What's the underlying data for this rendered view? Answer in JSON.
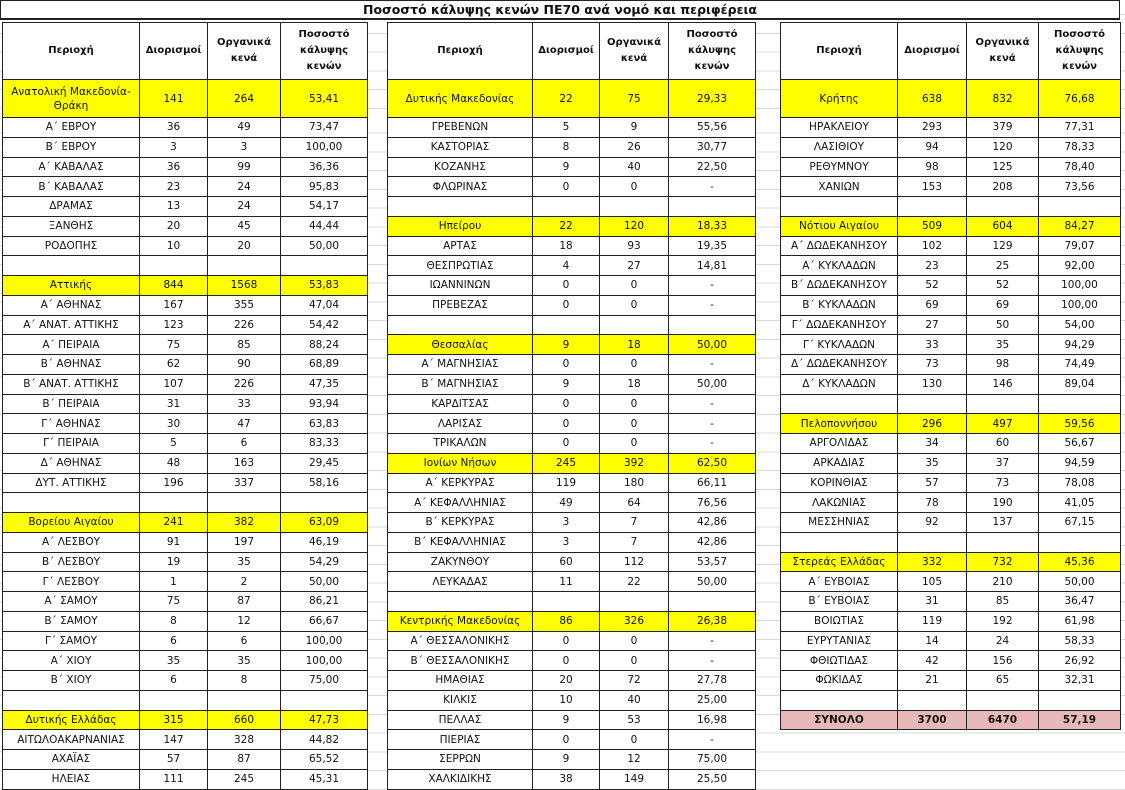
{
  "title": "Ποσοστό κάλυψης κενών ΠΕ70 ανά νομό και περιφέρεια",
  "headers": [
    "Περιοχή",
    "Διορισμοί",
    "Οργανικά κενά",
    "Ποσοστό κάλυψης κενών"
  ],
  "colors": {
    "region_highlight": "#ffff00",
    "total_highlight": "#e6b8b7"
  },
  "columns": [
    [
      {
        "type": "region",
        "cells": [
          "Ανατολική Μακεδονία-Θράκη",
          "141",
          "264",
          "53,41"
        ]
      },
      {
        "type": "item",
        "cells": [
          "Α΄ ΕΒΡΟΥ",
          "36",
          "49",
          "73,47"
        ]
      },
      {
        "type": "item",
        "cells": [
          "Β΄ ΕΒΡΟΥ",
          "3",
          "3",
          "100,00"
        ]
      },
      {
        "type": "item",
        "cells": [
          "Α΄ ΚΑΒΑΛΑΣ",
          "36",
          "99",
          "36,36"
        ]
      },
      {
        "type": "item",
        "cells": [
          "Β΄ ΚΑΒΑΛΑΣ",
          "23",
          "24",
          "95,83"
        ]
      },
      {
        "type": "item",
        "cells": [
          "ΔΡΑΜΑΣ",
          "13",
          "24",
          "54,17"
        ]
      },
      {
        "type": "item",
        "cells": [
          "ΞΑΝΘΗΣ",
          "20",
          "45",
          "44,44"
        ]
      },
      {
        "type": "item",
        "cells": [
          "ΡΟΔΟΠΗΣ",
          "10",
          "20",
          "50,00"
        ]
      },
      {
        "type": "blank"
      },
      {
        "type": "region",
        "cells": [
          "Αττικής",
          "844",
          "1568",
          "53,83"
        ]
      },
      {
        "type": "item",
        "cells": [
          "Α΄ ΑΘΗΝΑΣ",
          "167",
          "355",
          "47,04"
        ]
      },
      {
        "type": "item",
        "cells": [
          "Α΄ ΑΝΑΤ. ΑΤΤΙΚΗΣ",
          "123",
          "226",
          "54,42"
        ]
      },
      {
        "type": "item",
        "cells": [
          "Α΄ ΠΕΙΡΑΙΑ",
          "75",
          "85",
          "88,24"
        ]
      },
      {
        "type": "item",
        "cells": [
          "Β΄ ΑΘΗΝΑΣ",
          "62",
          "90",
          "68,89"
        ]
      },
      {
        "type": "item",
        "cells": [
          "Β΄ ΑΝΑΤ. ΑΤΤΙΚΗΣ",
          "107",
          "226",
          "47,35"
        ]
      },
      {
        "type": "item",
        "cells": [
          "Β΄ ΠΕΙΡΑΙΑ",
          "31",
          "33",
          "93,94"
        ]
      },
      {
        "type": "item",
        "cells": [
          "Γ΄ ΑΘΗΝΑΣ",
          "30",
          "47",
          "63,83"
        ]
      },
      {
        "type": "item",
        "cells": [
          "Γ΄ ΠΕΙΡΑΙΑ",
          "5",
          "6",
          "83,33"
        ]
      },
      {
        "type": "item",
        "cells": [
          "Δ΄ ΑΘΗΝΑΣ",
          "48",
          "163",
          "29,45"
        ]
      },
      {
        "type": "item",
        "cells": [
          "ΔΥΤ. ΑΤΤΙΚΗΣ",
          "196",
          "337",
          "58,16"
        ]
      },
      {
        "type": "blank"
      },
      {
        "type": "region",
        "cells": [
          "Βορείου Αιγαίου",
          "241",
          "382",
          "63,09"
        ]
      },
      {
        "type": "item",
        "cells": [
          "Α΄ ΛΕΣΒΟΥ",
          "91",
          "197",
          "46,19"
        ]
      },
      {
        "type": "item",
        "cells": [
          "Β΄ ΛΕΣΒΟΥ",
          "19",
          "35",
          "54,29"
        ]
      },
      {
        "type": "item",
        "cells": [
          "Γ΄ ΛΕΣΒΟΥ",
          "1",
          "2",
          "50,00"
        ]
      },
      {
        "type": "item",
        "cells": [
          "Α΄ ΣΑΜΟΥ",
          "75",
          "87",
          "86,21"
        ]
      },
      {
        "type": "item",
        "cells": [
          "Β΄ ΣΑΜΟΥ",
          "8",
          "12",
          "66,67"
        ]
      },
      {
        "type": "item",
        "cells": [
          "Γ΄ ΣΑΜΟΥ",
          "6",
          "6",
          "100,00"
        ]
      },
      {
        "type": "item",
        "cells": [
          "Α΄ ΧΙΟΥ",
          "35",
          "35",
          "100,00"
        ]
      },
      {
        "type": "item",
        "cells": [
          "Β΄ ΧΙΟΥ",
          "6",
          "8",
          "75,00"
        ]
      },
      {
        "type": "blank"
      },
      {
        "type": "region",
        "cells": [
          "Δυτικής Ελλάδας",
          "315",
          "660",
          "47,73"
        ]
      },
      {
        "type": "item",
        "cells": [
          "ΑΙΤΩΛΟΑΚΑΡΝΑΝΙΑΣ",
          "147",
          "328",
          "44,82"
        ]
      },
      {
        "type": "item",
        "cells": [
          "ΑΧΑΪΑΣ",
          "57",
          "87",
          "65,52"
        ]
      },
      {
        "type": "item",
        "cells": [
          "ΗΛΕΙΑΣ",
          "111",
          "245",
          "45,31"
        ]
      }
    ],
    [
      {
        "type": "region",
        "cells": [
          "Δυτικής Μακεδονίας",
          "22",
          "75",
          "29,33"
        ]
      },
      {
        "type": "item",
        "cells": [
          "ΓΡΕΒΕΝΩΝ",
          "5",
          "9",
          "55,56"
        ]
      },
      {
        "type": "item",
        "cells": [
          "ΚΑΣΤΟΡΙΑΣ",
          "8",
          "26",
          "30,77"
        ]
      },
      {
        "type": "item",
        "cells": [
          "ΚΟΖΑΝΗΣ",
          "9",
          "40",
          "22,50"
        ]
      },
      {
        "type": "item",
        "cells": [
          "ΦΛΩΡΙΝΑΣ",
          "0",
          "0",
          "-"
        ]
      },
      {
        "type": "blank"
      },
      {
        "type": "region",
        "cells": [
          "Ηπείρου",
          "22",
          "120",
          "18,33"
        ]
      },
      {
        "type": "item",
        "cells": [
          "ΑΡΤΑΣ",
          "18",
          "93",
          "19,35"
        ]
      },
      {
        "type": "item",
        "cells": [
          "ΘΕΣΠΡΩΤΙΑΣ",
          "4",
          "27",
          "14,81"
        ]
      },
      {
        "type": "item",
        "cells": [
          "ΙΩΑΝΝΙΝΩΝ",
          "0",
          "0",
          "-"
        ]
      },
      {
        "type": "item",
        "cells": [
          "ΠΡΕΒΕΖΑΣ",
          "0",
          "0",
          "-"
        ]
      },
      {
        "type": "blank"
      },
      {
        "type": "region",
        "cells": [
          "Θεσσαλίας",
          "9",
          "18",
          "50,00"
        ]
      },
      {
        "type": "item",
        "cells": [
          "Α΄ ΜΑΓΝΗΣΙΑΣ",
          "0",
          "0",
          "-"
        ]
      },
      {
        "type": "item",
        "cells": [
          "Β΄ ΜΑΓΝΗΣΙΑΣ",
          "9",
          "18",
          "50,00"
        ]
      },
      {
        "type": "item",
        "cells": [
          "ΚΑΡΔΙΤΣΑΣ",
          "0",
          "0",
          "-"
        ]
      },
      {
        "type": "item",
        "cells": [
          "ΛΑΡΙΣΑΣ",
          "0",
          "0",
          "-"
        ]
      },
      {
        "type": "item",
        "cells": [
          "ΤΡΙΚΑΛΩΝ",
          "0",
          "0",
          "-"
        ]
      },
      {
        "type": "region",
        "cells": [
          "Ιονίων Νήσων",
          "245",
          "392",
          "62,50"
        ]
      },
      {
        "type": "item",
        "cells": [
          "Α΄ ΚΕΡΚΥΡΑΣ",
          "119",
          "180",
          "66,11"
        ]
      },
      {
        "type": "item",
        "cells": [
          "Α΄ ΚΕΦΑΛΛΗΝΙΑΣ",
          "49",
          "64",
          "76,56"
        ]
      },
      {
        "type": "item",
        "cells": [
          "Β΄ ΚΕΡΚΥΡΑΣ",
          "3",
          "7",
          "42,86"
        ]
      },
      {
        "type": "item",
        "cells": [
          "Β΄ ΚΕΦΑΛΛΗΝΙΑΣ",
          "3",
          "7",
          "42,86"
        ]
      },
      {
        "type": "item",
        "cells": [
          "ΖΑΚΥΝΘΟΥ",
          "60",
          "112",
          "53,57"
        ]
      },
      {
        "type": "item",
        "cells": [
          "ΛΕΥΚΑΔΑΣ",
          "11",
          "22",
          "50,00"
        ]
      },
      {
        "type": "blank"
      },
      {
        "type": "region",
        "cells": [
          "Κεντρικής Μακεδονίας",
          "86",
          "326",
          "26,38"
        ]
      },
      {
        "type": "item",
        "cells": [
          "Α΄ ΘΕΣΣΑΛΟΝΙΚΗΣ",
          "0",
          "0",
          "-"
        ]
      },
      {
        "type": "item",
        "cells": [
          "Β΄ ΘΕΣΣΑΛΟΝΙΚΗΣ",
          "0",
          "0",
          "-"
        ]
      },
      {
        "type": "item",
        "cells": [
          "ΗΜΑΘΙΑΣ",
          "20",
          "72",
          "27,78"
        ]
      },
      {
        "type": "item",
        "cells": [
          "ΚΙΛΚΙΣ",
          "10",
          "40",
          "25,00"
        ]
      },
      {
        "type": "item",
        "cells": [
          "ΠΕΛΛΑΣ",
          "9",
          "53",
          "16,98"
        ]
      },
      {
        "type": "item",
        "cells": [
          "ΠΙΕΡΙΑΣ",
          "0",
          "0",
          "-"
        ]
      },
      {
        "type": "item",
        "cells": [
          "ΣΕΡΡΩΝ",
          "9",
          "12",
          "75,00"
        ]
      },
      {
        "type": "item",
        "cells": [
          "ΧΑΛΚΙΔΙΚΗΣ",
          "38",
          "149",
          "25,50"
        ]
      }
    ],
    [
      {
        "type": "region",
        "cells": [
          "Κρήτης",
          "638",
          "832",
          "76,68"
        ]
      },
      {
        "type": "item",
        "cells": [
          "ΗΡΑΚΛΕΙΟΥ",
          "293",
          "379",
          "77,31"
        ]
      },
      {
        "type": "item",
        "cells": [
          "ΛΑΣΙΘΙΟΥ",
          "94",
          "120",
          "78,33"
        ]
      },
      {
        "type": "item",
        "cells": [
          "ΡΕΘΥΜΝΟΥ",
          "98",
          "125",
          "78,40"
        ]
      },
      {
        "type": "item",
        "cells": [
          "ΧΑΝΙΩΝ",
          "153",
          "208",
          "73,56"
        ]
      },
      {
        "type": "blank"
      },
      {
        "type": "region",
        "cells": [
          "Νότιου Αιγαίου",
          "509",
          "604",
          "84,27"
        ]
      },
      {
        "type": "item",
        "cells": [
          "Α΄ ΔΩΔΕΚΑΝΗΣΟΥ",
          "102",
          "129",
          "79,07"
        ]
      },
      {
        "type": "item",
        "cells": [
          "Α΄ ΚΥΚΛΑΔΩΝ",
          "23",
          "25",
          "92,00"
        ]
      },
      {
        "type": "item",
        "cells": [
          "Β΄ ΔΩΔΕΚΑΝΗΣΟΥ",
          "52",
          "52",
          "100,00"
        ]
      },
      {
        "type": "item",
        "cells": [
          "Β΄ ΚΥΚΛΑΔΩΝ",
          "69",
          "69",
          "100,00"
        ]
      },
      {
        "type": "item",
        "cells": [
          "Γ΄ ΔΩΔΕΚΑΝΗΣΟΥ",
          "27",
          "50",
          "54,00"
        ]
      },
      {
        "type": "item",
        "cells": [
          "Γ΄ ΚΥΚΛΑΔΩΝ",
          "33",
          "35",
          "94,29"
        ]
      },
      {
        "type": "item",
        "cells": [
          "Δ΄ ΔΩΔΕΚΑΝΗΣΟΥ",
          "73",
          "98",
          "74,49"
        ]
      },
      {
        "type": "item",
        "cells": [
          "Δ΄ ΚΥΚΛΑΔΩΝ",
          "130",
          "146",
          "89,04"
        ]
      },
      {
        "type": "blank"
      },
      {
        "type": "region",
        "cells": [
          "Πελοποννήσου",
          "296",
          "497",
          "59,56"
        ]
      },
      {
        "type": "item",
        "cells": [
          "ΑΡΓΟΛΙΔΑΣ",
          "34",
          "60",
          "56,67"
        ]
      },
      {
        "type": "item",
        "cells": [
          "ΑΡΚΑΔΙΑΣ",
          "35",
          "37",
          "94,59"
        ]
      },
      {
        "type": "item",
        "cells": [
          "ΚΟΡΙΝΘΙΑΣ",
          "57",
          "73",
          "78,08"
        ]
      },
      {
        "type": "item",
        "cells": [
          "ΛΑΚΩΝΙΑΣ",
          "78",
          "190",
          "41,05"
        ]
      },
      {
        "type": "item",
        "cells": [
          "ΜΕΣΣΗΝΙΑΣ",
          "92",
          "137",
          "67,15"
        ]
      },
      {
        "type": "blank"
      },
      {
        "type": "region",
        "cells": [
          "Στερεάς Ελλάδας",
          "332",
          "732",
          "45,36"
        ]
      },
      {
        "type": "item",
        "cells": [
          "Α΄ ΕΥΒΟΙΑΣ",
          "105",
          "210",
          "50,00"
        ]
      },
      {
        "type": "item",
        "cells": [
          "Β΄ ΕΥΒΟΙΑΣ",
          "31",
          "85",
          "36,47"
        ]
      },
      {
        "type": "item",
        "cells": [
          "ΒΟΙΩΤΙΑΣ",
          "119",
          "192",
          "61,98"
        ]
      },
      {
        "type": "item",
        "cells": [
          "ΕΥΡΥΤΑΝΙΑΣ",
          "14",
          "24",
          "58,33"
        ]
      },
      {
        "type": "item",
        "cells": [
          "ΦΘΙΩΤΙΔΑΣ",
          "42",
          "156",
          "26,92"
        ]
      },
      {
        "type": "item",
        "cells": [
          "ΦΩΚΙΔΑΣ",
          "21",
          "65",
          "32,31"
        ]
      },
      {
        "type": "blank"
      },
      {
        "type": "total",
        "cells": [
          "ΣΥΝΟΛΟ",
          "3700",
          "6470",
          "57,19"
        ]
      }
    ]
  ]
}
